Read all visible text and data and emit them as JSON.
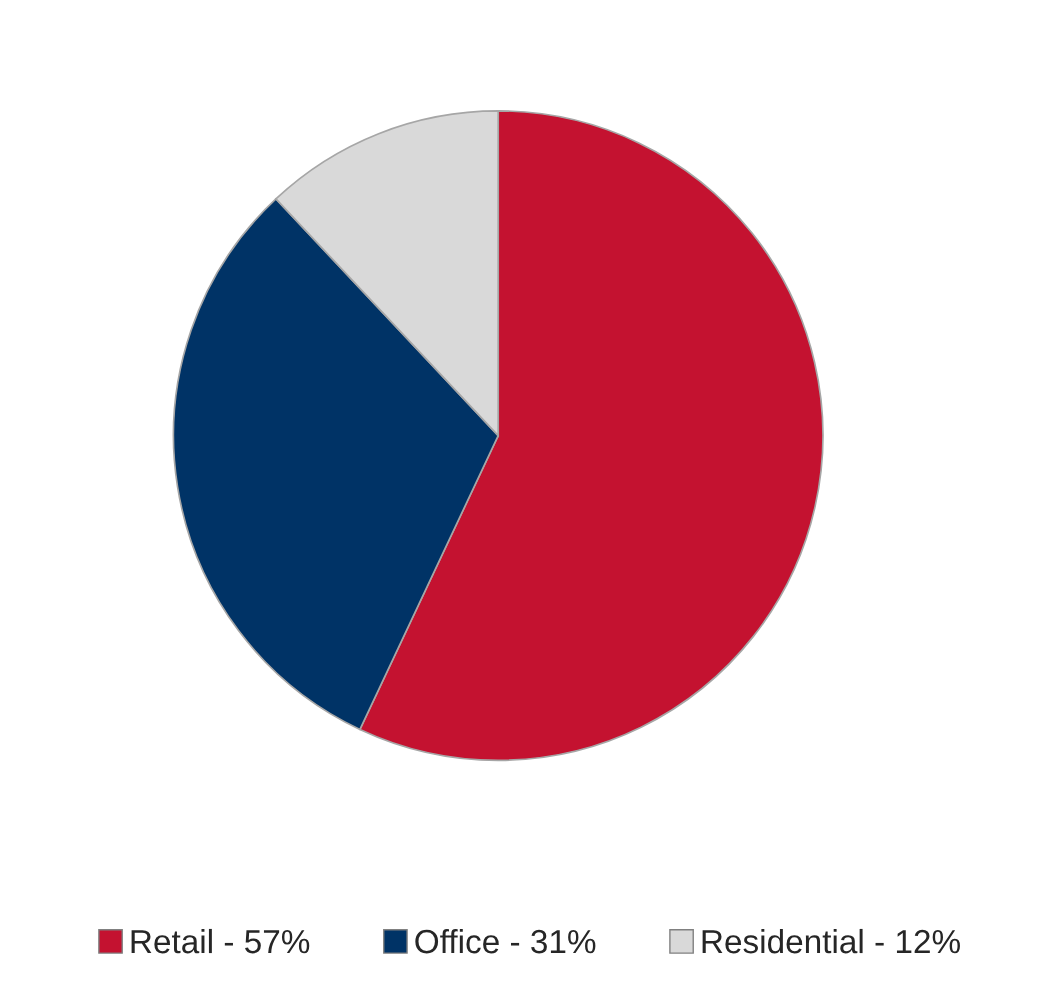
{
  "chart_data": {
    "type": "pie",
    "categories": [
      "Retail - 57%",
      "Office - 31%",
      "Residential - 12%"
    ],
    "values": [
      57,
      31,
      12
    ],
    "colors": [
      "#c41230",
      "#003366",
      "#d9d9d9"
    ],
    "legend": "bottom"
  }
}
